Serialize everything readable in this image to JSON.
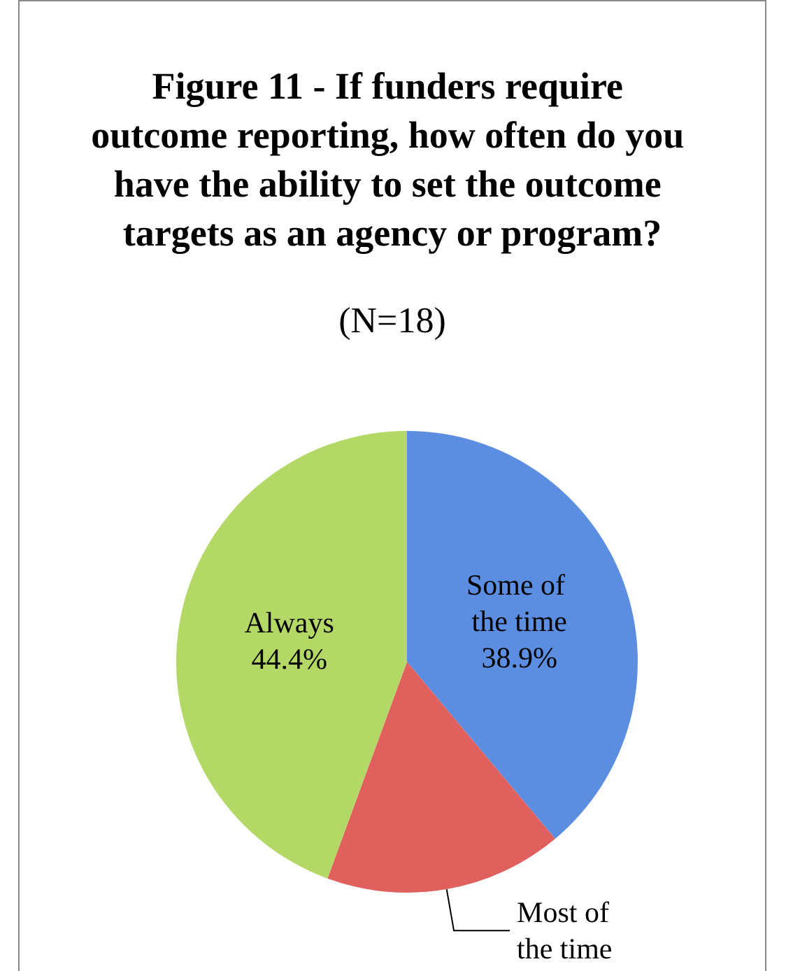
{
  "chart_data": {
    "type": "pie",
    "title": "Figure 11 - If funders require outcome reporting, how often do you have the ability to set the outcome targets as an agency or program?",
    "subtitle": "(N=18)",
    "categories": [
      "Some of the time",
      "Most of the time",
      "Always"
    ],
    "values": [
      38.9,
      16.7,
      44.4
    ],
    "value_labels": [
      "38.9%",
      null,
      "44.4%"
    ],
    "colors": [
      "#5b8ee0",
      "#e0605e",
      "#b4d865"
    ],
    "legend": false
  }
}
